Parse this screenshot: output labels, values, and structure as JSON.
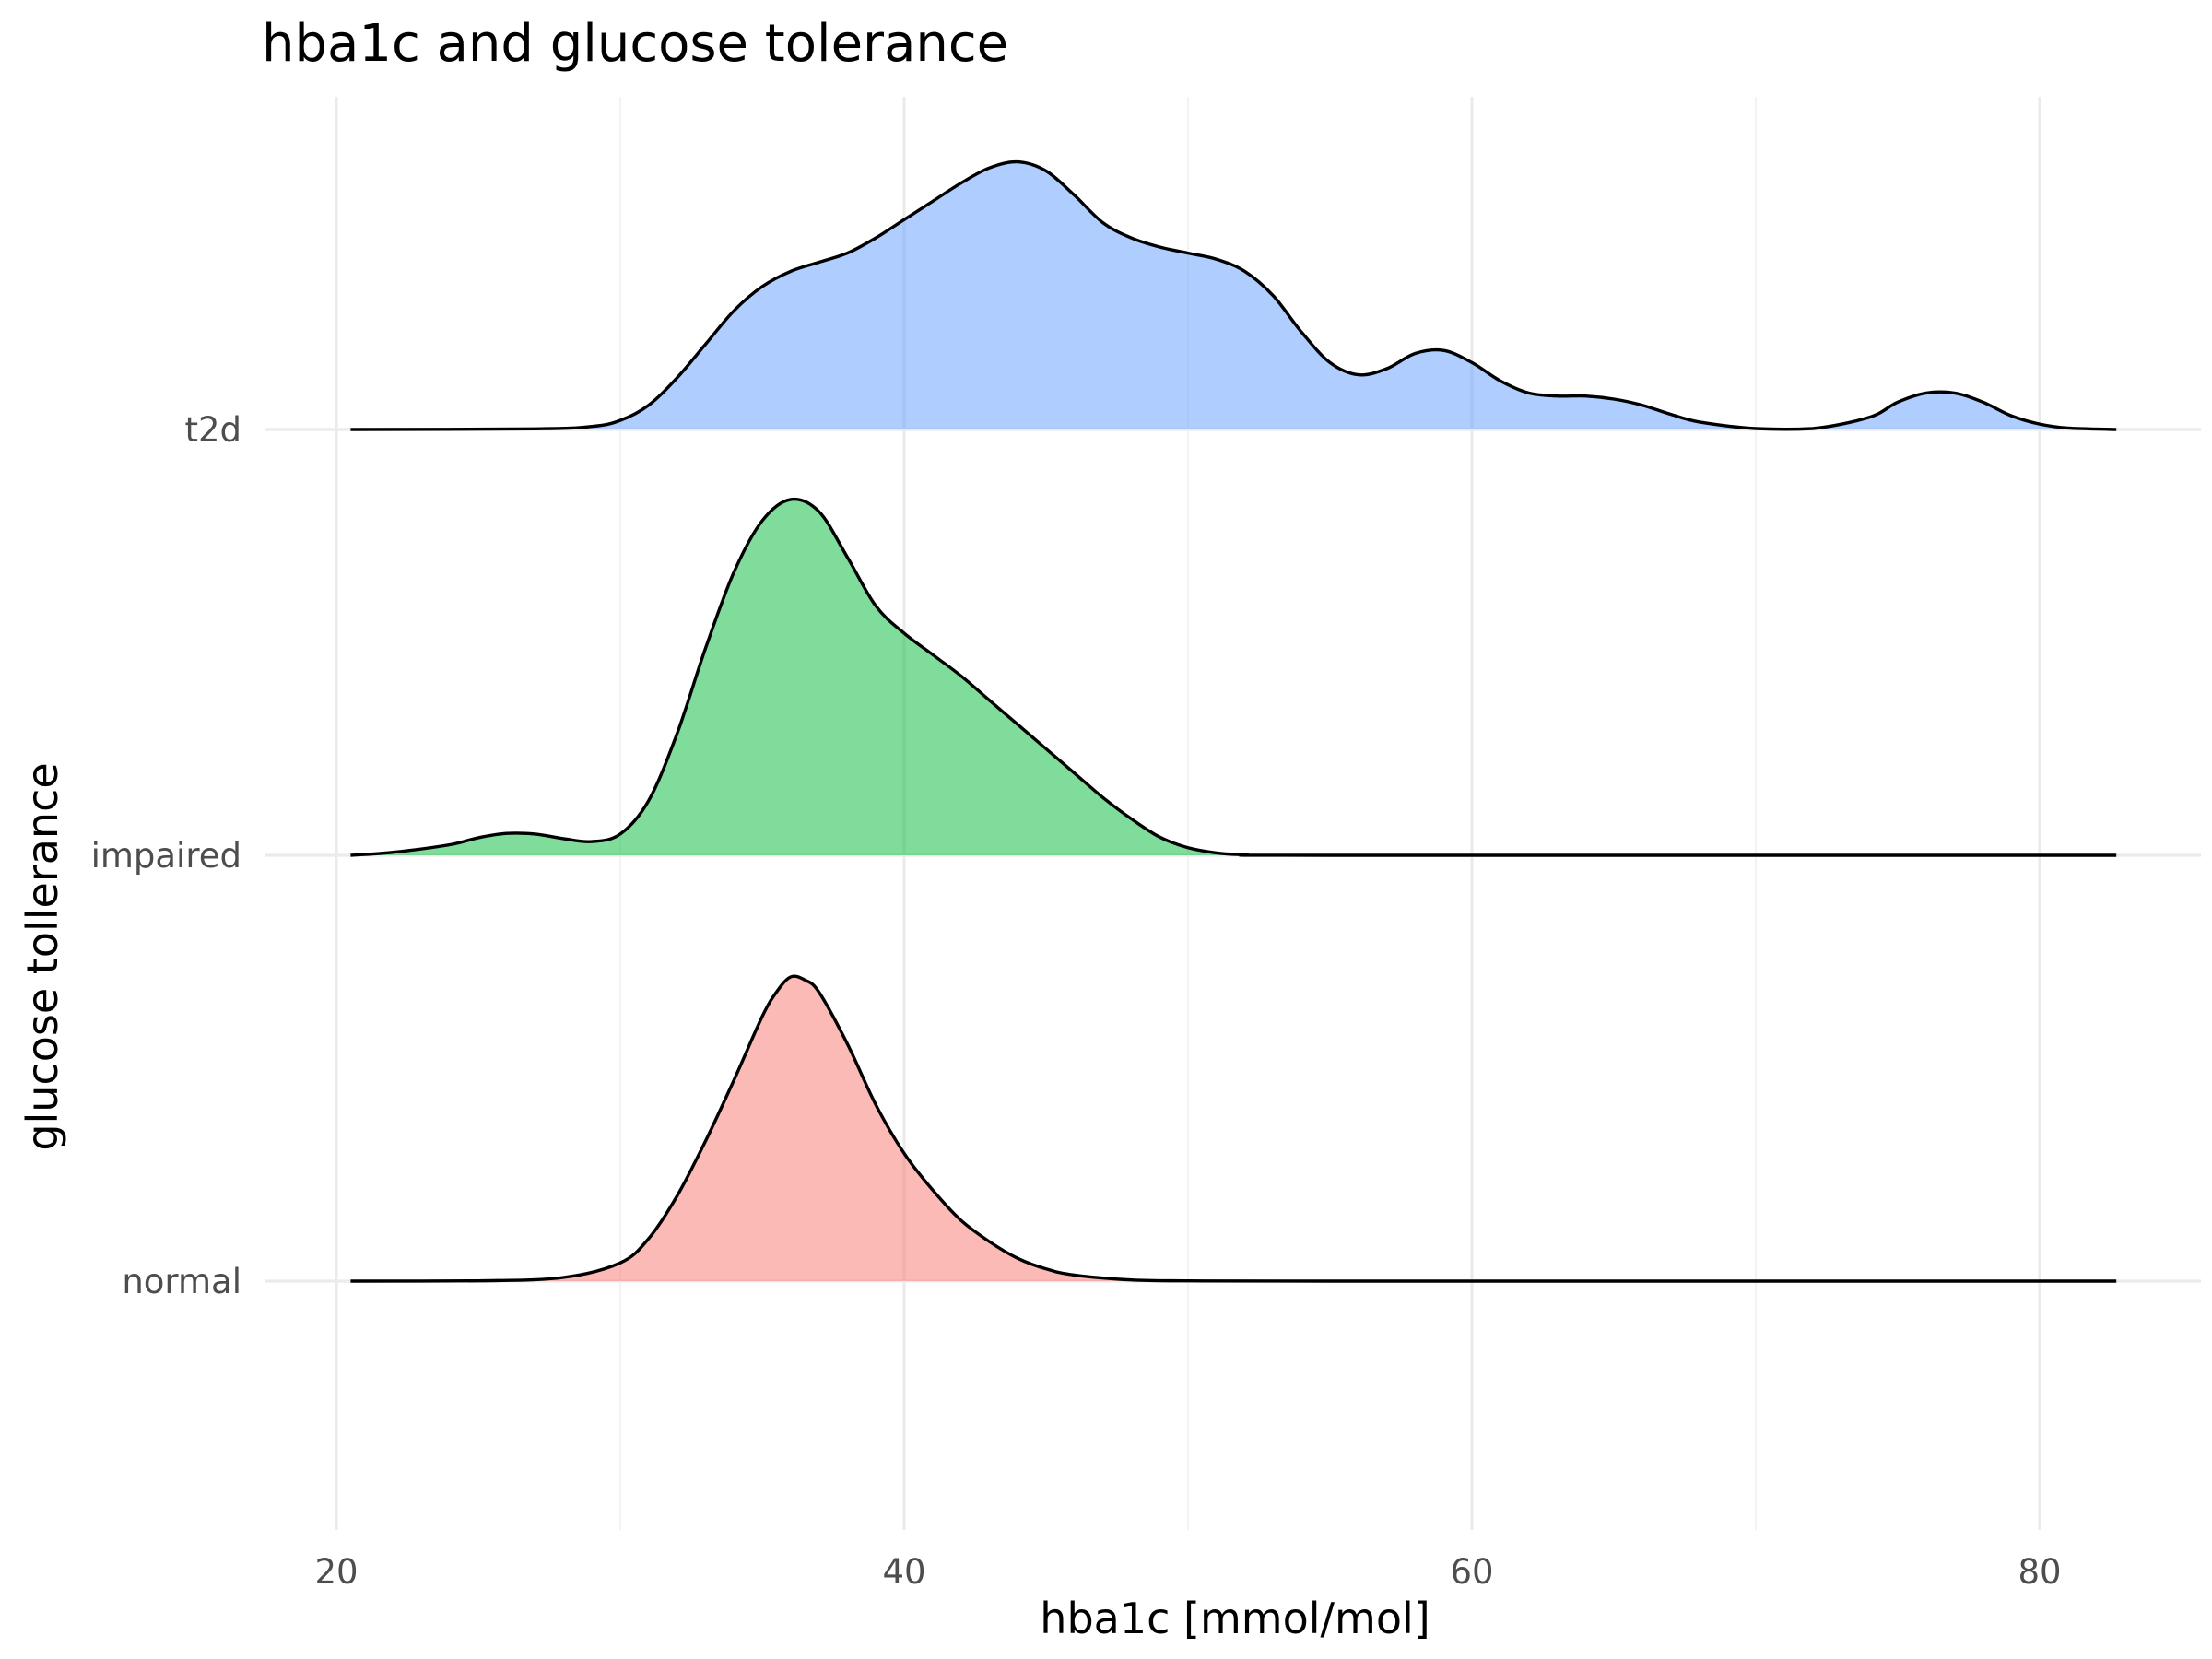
{
  "chart_data": {
    "type": "ridgeline",
    "title": "hba1c and glucose tolerance",
    "xlabel": "hba1c [mmol/mol]",
    "ylabel": "glucose tollerance",
    "xlim": [
      17.5,
      85
    ],
    "x_ticks": [
      20,
      40,
      60,
      80
    ],
    "x_minor_ticks": [
      30,
      50,
      70
    ],
    "categories": [
      "normal",
      "impaired",
      "t2d"
    ],
    "grid": true,
    "legend": "none",
    "series": [
      {
        "category": "normal",
        "color": "#F8766D",
        "points": [
          [
            20.5,
            0
          ],
          [
            25,
            0.001
          ],
          [
            28,
            0.012
          ],
          [
            30,
            0.06
          ],
          [
            31,
            0.14
          ],
          [
            32,
            0.28
          ],
          [
            33,
            0.46
          ],
          [
            34,
            0.66
          ],
          [
            35,
            0.87
          ],
          [
            35.5,
            0.95
          ],
          [
            36,
            1.0
          ],
          [
            36.5,
            0.99
          ],
          [
            37,
            0.95
          ],
          [
            38,
            0.78
          ],
          [
            39,
            0.58
          ],
          [
            40,
            0.42
          ],
          [
            41,
            0.3
          ],
          [
            42,
            0.2
          ],
          [
            43,
            0.13
          ],
          [
            44,
            0.075
          ],
          [
            45,
            0.04
          ],
          [
            46,
            0.02
          ],
          [
            48,
            0.004
          ],
          [
            50,
            0.001
          ],
          [
            55,
            0
          ],
          [
            82.7,
            0
          ]
        ]
      },
      {
        "category": "impaired",
        "color": "#00BA38",
        "points": [
          [
            20.5,
            0
          ],
          [
            22,
            0.01
          ],
          [
            24,
            0.035
          ],
          [
            25,
            0.058
          ],
          [
            26,
            0.072
          ],
          [
            27,
            0.07
          ],
          [
            28,
            0.055
          ],
          [
            29,
            0.045
          ],
          [
            30,
            0.07
          ],
          [
            31,
            0.18
          ],
          [
            32,
            0.4
          ],
          [
            33,
            0.68
          ],
          [
            34,
            0.93
          ],
          [
            35,
            1.1
          ],
          [
            36,
            1.17
          ],
          [
            37,
            1.13
          ],
          [
            38,
            0.98
          ],
          [
            39,
            0.82
          ],
          [
            40,
            0.73
          ],
          [
            41,
            0.66
          ],
          [
            42,
            0.59
          ],
          [
            43,
            0.51
          ],
          [
            44,
            0.43
          ],
          [
            45,
            0.35
          ],
          [
            46,
            0.27
          ],
          [
            47,
            0.19
          ],
          [
            48,
            0.12
          ],
          [
            49,
            0.06
          ],
          [
            50,
            0.025
          ],
          [
            51,
            0.008
          ],
          [
            52,
            0.002
          ],
          [
            55,
            0
          ],
          [
            82.7,
            0
          ]
        ]
      },
      {
        "category": "t2d",
        "color": "#619CFF",
        "points": [
          [
            20.5,
            0
          ],
          [
            27,
            0.002
          ],
          [
            29,
            0.01
          ],
          [
            30,
            0.03
          ],
          [
            31,
            0.08
          ],
          [
            32,
            0.17
          ],
          [
            33,
            0.28
          ],
          [
            34,
            0.39
          ],
          [
            35,
            0.47
          ],
          [
            36,
            0.52
          ],
          [
            37,
            0.55
          ],
          [
            38,
            0.58
          ],
          [
            39,
            0.63
          ],
          [
            40,
            0.69
          ],
          [
            41,
            0.75
          ],
          [
            42,
            0.81
          ],
          [
            43,
            0.86
          ],
          [
            44,
            0.88
          ],
          [
            45,
            0.85
          ],
          [
            46,
            0.77
          ],
          [
            47,
            0.68
          ],
          [
            48,
            0.63
          ],
          [
            49,
            0.6
          ],
          [
            50,
            0.58
          ],
          [
            51,
            0.56
          ],
          [
            52,
            0.52
          ],
          [
            53,
            0.44
          ],
          [
            54,
            0.32
          ],
          [
            55,
            0.22
          ],
          [
            56,
            0.18
          ],
          [
            57,
            0.2
          ],
          [
            58,
            0.25
          ],
          [
            59,
            0.26
          ],
          [
            60,
            0.22
          ],
          [
            61,
            0.16
          ],
          [
            62,
            0.12
          ],
          [
            63,
            0.11
          ],
          [
            64,
            0.11
          ],
          [
            65,
            0.1
          ],
          [
            66,
            0.08
          ],
          [
            67,
            0.05
          ],
          [
            68,
            0.025
          ],
          [
            70,
            0.003
          ],
          [
            72,
            0.003
          ],
          [
            74,
            0.04
          ],
          [
            75,
            0.09
          ],
          [
            76,
            0.12
          ],
          [
            77,
            0.12
          ],
          [
            78,
            0.09
          ],
          [
            79,
            0.045
          ],
          [
            80,
            0.018
          ],
          [
            81,
            0.005
          ],
          [
            82.7,
            0
          ]
        ]
      }
    ]
  }
}
